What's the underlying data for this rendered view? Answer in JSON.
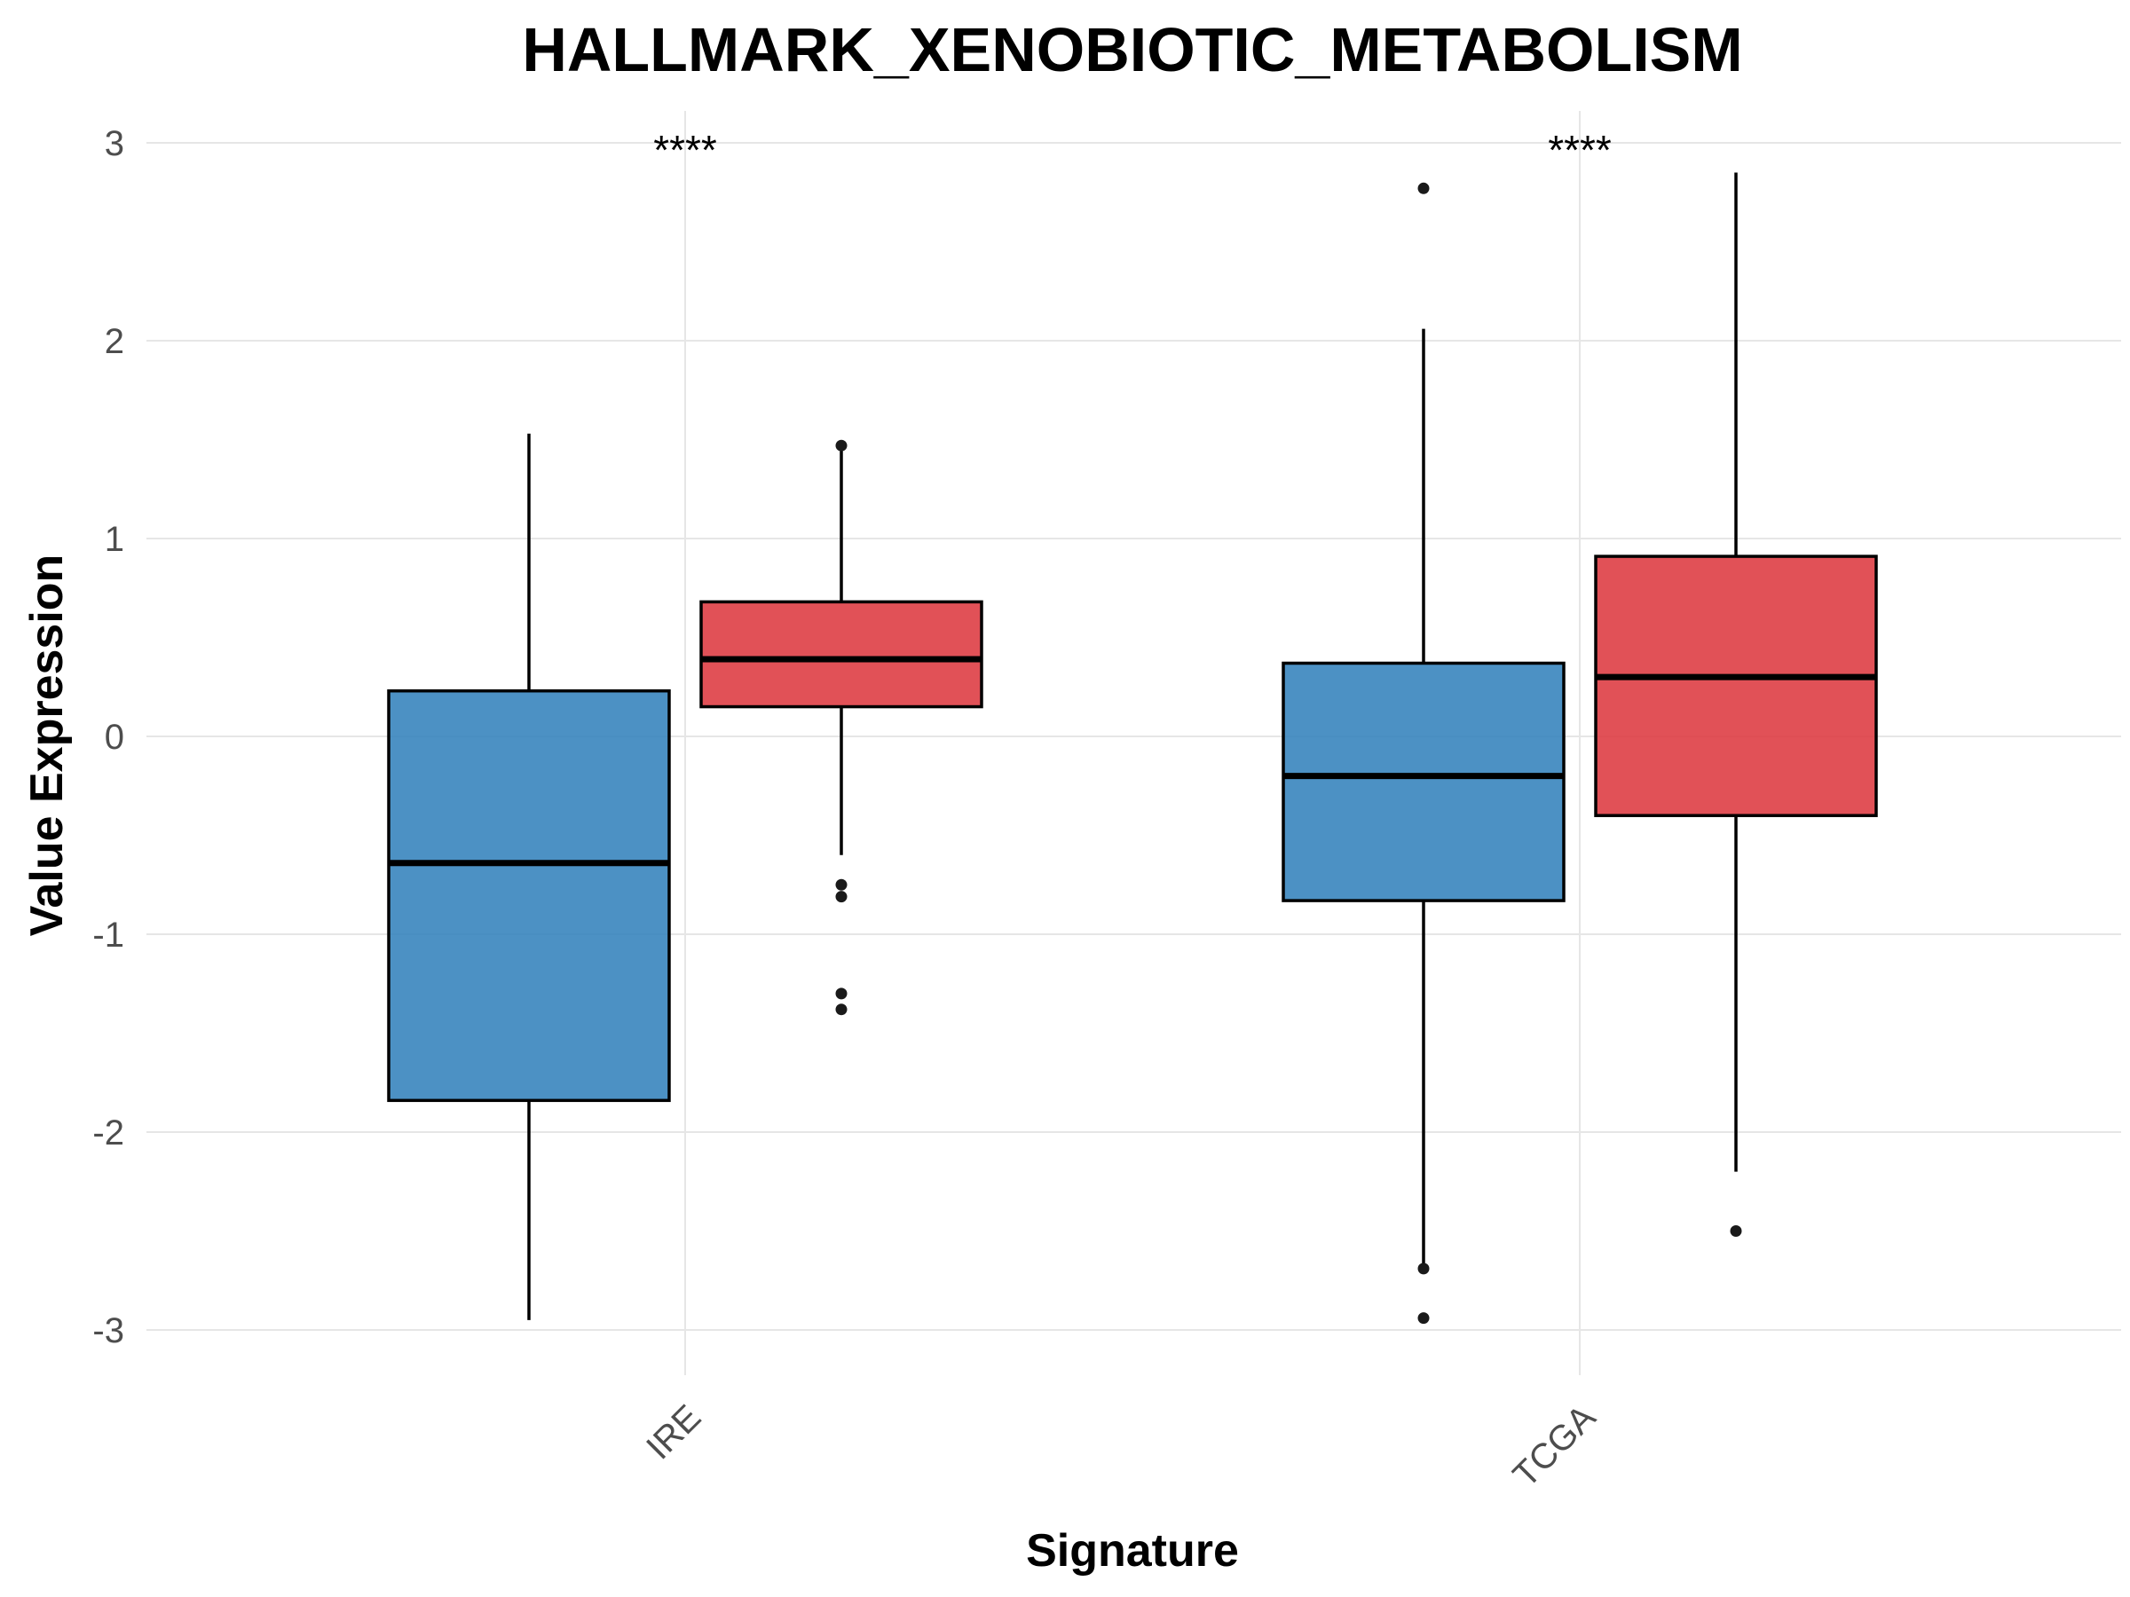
{
  "chart_data": {
    "type": "box",
    "title": "HALLMARK_XENOBIOTIC_METABOLISM",
    "xlabel": "Signature",
    "ylabel": "Value Expression",
    "categories": [
      "IRE",
      "TCGA"
    ],
    "ylim": [
      -3.2,
      3.15
    ],
    "yticks": [
      3,
      2,
      1,
      0,
      -1,
      -2,
      -3
    ],
    "ytick_labels": [
      "3",
      "2",
      "1",
      "0",
      "-1",
      "-2",
      "-3"
    ],
    "significance": [
      "****",
      "****"
    ],
    "grid": true,
    "legend": "none",
    "series": [
      {
        "color": "#2f7fba",
        "boxes": [
          {
            "category": "IRE",
            "whisker_low": -2.95,
            "q1": -1.84,
            "median": -0.64,
            "q3": 0.23,
            "whisker_high": 1.53,
            "outliers": []
          },
          {
            "category": "TCGA",
            "whisker_low": -2.68,
            "q1": -0.83,
            "median": -0.2,
            "q3": 0.37,
            "whisker_high": 2.06,
            "outliers": [
              2.77,
              -2.69,
              -2.94
            ]
          }
        ]
      },
      {
        "color": "#dc343b",
        "boxes": [
          {
            "category": "IRE",
            "whisker_low": -0.6,
            "q1": 0.15,
            "median": 0.39,
            "q3": 0.68,
            "whisker_high": 1.45,
            "outliers": [
              1.47,
              -0.75,
              -0.81,
              -1.3,
              -1.38
            ]
          },
          {
            "category": "TCGA",
            "whisker_low": -2.2,
            "q1": -0.4,
            "median": 0.3,
            "q3": 0.91,
            "whisker_high": 2.85,
            "outliers": [
              -2.5
            ]
          }
        ]
      }
    ]
  }
}
